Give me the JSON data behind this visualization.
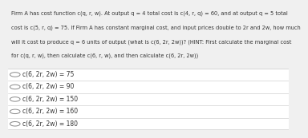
{
  "question_text": [
    "Firm A has cost function c(q, r, w). At output q = 4 total cost is c(4, r, q) = 60, and at output q = 5 total",
    "cost is c(5, r, q) = 75. If Firm A has constant marginal cost, and input prices double to 2r and 2w, how much",
    "will it cost to produce q = 6 units of output (what is c(6, 2r, 2w))? (HINT: First calculate the marginal cost",
    "for c(q, r, w), then calculate c(6, r, w), and then calculate c(6, 2r, 2w))"
  ],
  "options": [
    "c(6, 2r, 2w) = 75",
    "c(6, 2r, 2w) = 90",
    "c(6, 2r, 2w) = 150",
    "c(6, 2r, 2w) = 160",
    "c(6, 2r, 2w) = 180"
  ],
  "bg_color": "#f0f0f0",
  "options_bg_color": "#ffffff",
  "text_color": "#333333",
  "font_size_question": 4.8,
  "font_size_options": 5.5,
  "line_color": "#d0d0d0",
  "circle_color": "#888888"
}
